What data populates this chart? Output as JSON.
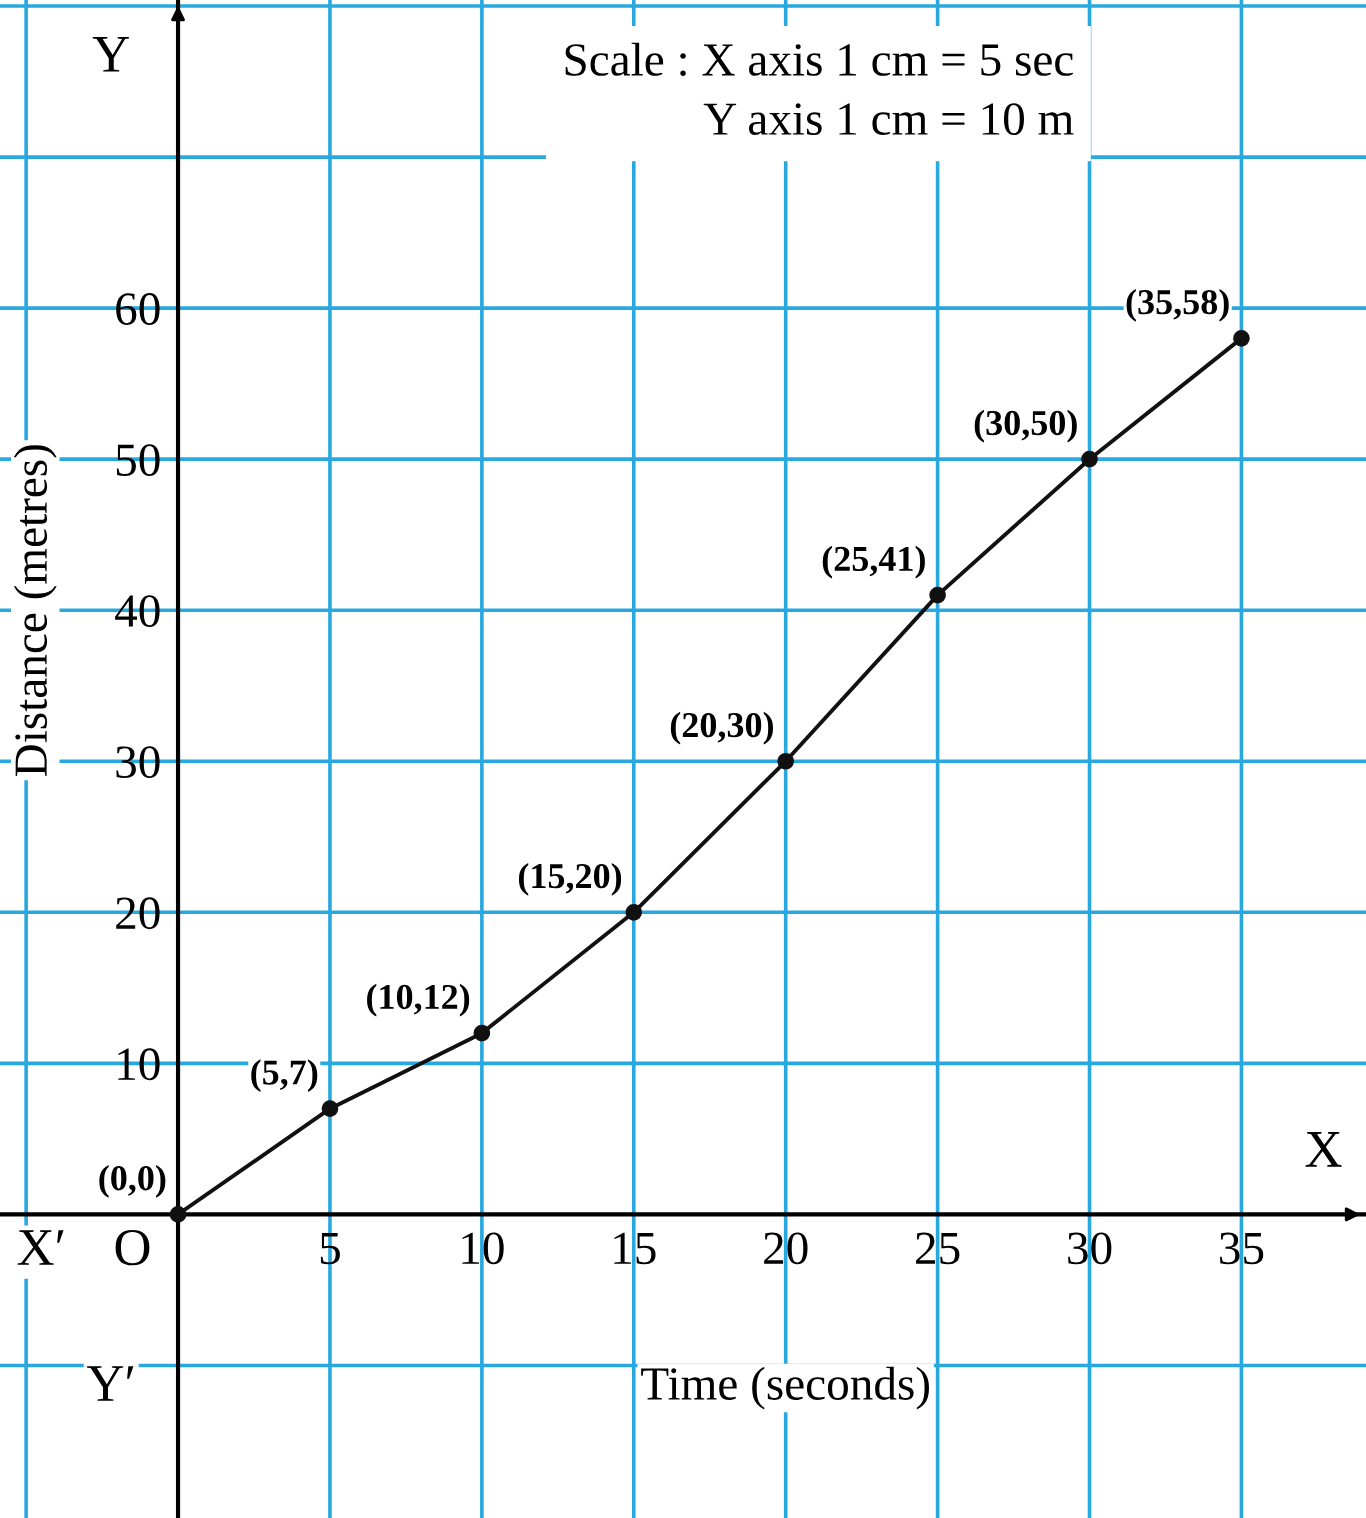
{
  "chart_data": {
    "type": "line",
    "x": [
      0,
      5,
      10,
      15,
      20,
      25,
      30,
      35
    ],
    "series": [
      {
        "color": "#111111",
        "values": [
          0,
          7,
          12,
          20,
          30,
          41,
          50,
          58
        ]
      }
    ],
    "xlabel": "Time (seconds)",
    "ylabel": "Distance (metres)",
    "xlim": [
      -5.86,
      39.1
    ],
    "ylim": [
      -20.1,
      80.4
    ],
    "xticks": [
      {
        "value": -5,
        "label": null
      },
      5,
      10,
      15,
      20,
      25,
      30,
      35
    ],
    "yticks": [
      {
        "value": -10,
        "label": null
      },
      10,
      20,
      30,
      40,
      50,
      60,
      {
        "value": 70,
        "label": null
      },
      {
        "value": 80,
        "label": null
      }
    ],
    "grid": true,
    "marker": "circle",
    "line_style": "solid",
    "annotations": [
      "Y",
      "X",
      "X′",
      "O",
      "Y′",
      "Scale : X axis 1 cm = 5 sec",
      "Y axis 1 cm = 10 m",
      {
        "text": "(0,0)",
        "x": 0,
        "y": 0
      },
      {
        "text": "(5,7)",
        "x": 5,
        "y": 7
      },
      {
        "text": "(10,12)",
        "x": 10,
        "y": 12
      },
      {
        "text": "(15,20)",
        "x": 15,
        "y": 20
      },
      {
        "text": "(20,30)",
        "x": 20,
        "y": 30
      },
      {
        "text": "(25,41)",
        "x": 25,
        "y": 41
      },
      {
        "text": "(30,50)",
        "x": 30,
        "y": 50
      },
      {
        "text": "(35,58)",
        "x": 35,
        "y": 58
      }
    ]
  }
}
